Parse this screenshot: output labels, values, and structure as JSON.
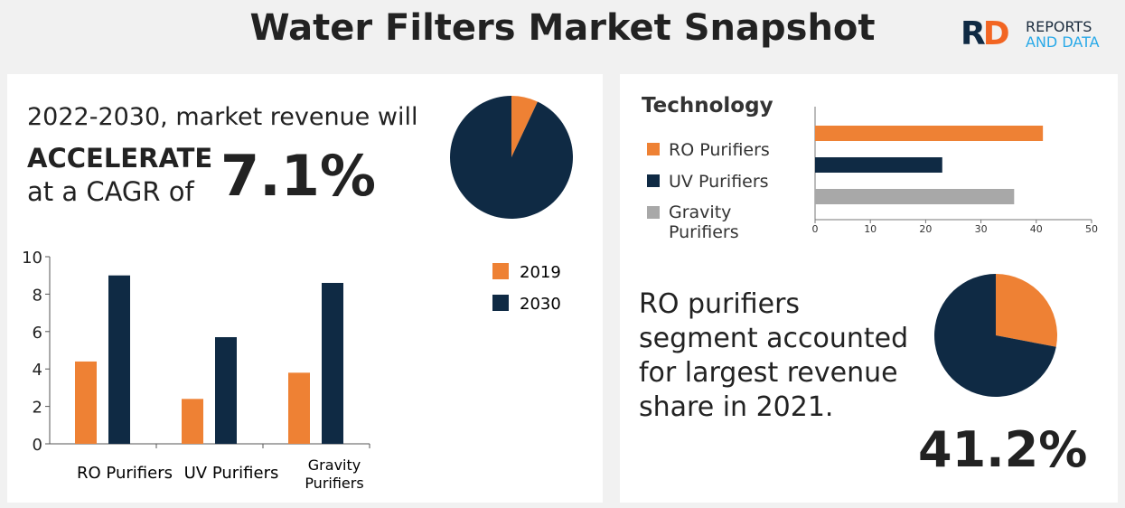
{
  "header": {
    "title": "Water Filters Market Snapshot",
    "logo": {
      "mark": "RD",
      "line1": "REPORTS",
      "line2": "AND DATA"
    }
  },
  "left": {
    "line1": "2022-2030, market revenue will",
    "line2": "ACCELERATE",
    "line3": "at a CAGR of",
    "cagr": "7.1%"
  },
  "right": {
    "text": [
      "RO purifiers",
      "segment accounted",
      "for largest revenue",
      "share in 2021."
    ],
    "share": "41.2%"
  },
  "colors": {
    "orange": "#ee8134",
    "navy": "#0f2a44",
    "gray": "#a8a8a8",
    "logo_blue": "#29a9e8",
    "logo_orange": "#f26522"
  },
  "chart_data": [
    {
      "type": "pie",
      "values": [
        7,
        93
      ],
      "colors": [
        "#ee8134",
        "#0f2a44"
      ]
    },
    {
      "type": "bar",
      "categories": [
        "RO Purifiers",
        "UV Purifiers",
        "Gravity Purifiers"
      ],
      "series": [
        {
          "name": "2019",
          "values": [
            4.4,
            2.4,
            3.8
          ]
        },
        {
          "name": "2030",
          "values": [
            9.0,
            5.7,
            8.6
          ]
        }
      ],
      "ylim": [
        0,
        10
      ],
      "yticks": [
        "0",
        "2",
        "4",
        "6",
        "8",
        "10"
      ],
      "legend": "top-right",
      "grid": false
    },
    {
      "type": "bar",
      "orientation": "horizontal",
      "title": "Technology",
      "categories": [
        "RO Purifiers",
        "UV Purifiers",
        "Gravity Purifiers"
      ],
      "values": [
        41.2,
        23,
        36
      ],
      "xlim": [
        0,
        50
      ],
      "xticks": [
        "0",
        "10",
        "20",
        "30",
        "40",
        "50"
      ],
      "legend": "left",
      "grid": false
    },
    {
      "type": "pie",
      "values": [
        28,
        72
      ],
      "colors": [
        "#ee8134",
        "#0f2a44"
      ]
    }
  ]
}
